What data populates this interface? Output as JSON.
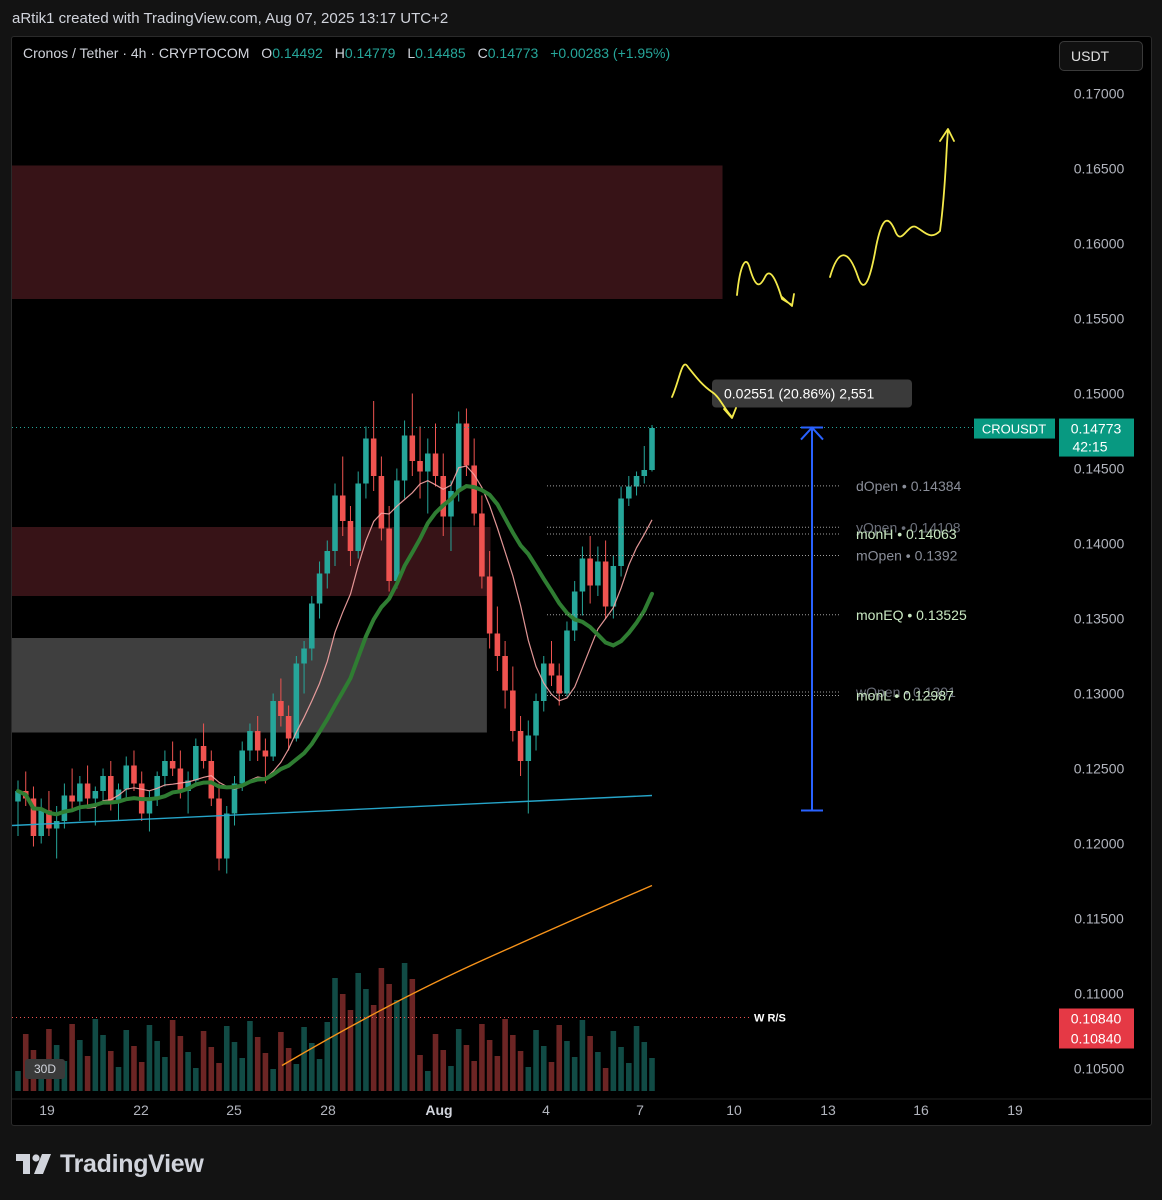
{
  "header": {
    "credit": "aRtik1 created with TradingView.com, Aug 07, 2025 13:17 UTC+2"
  },
  "legend": {
    "symbol": "Cronos / Tether · 4h · CRYPTOCOM",
    "o_label": "O",
    "o_value": "0.14492",
    "h_label": "H",
    "h_value": "0.14779",
    "l_label": "L",
    "l_value": "0.14485",
    "c_label": "C",
    "c_value": "0.14773",
    "change": "+0.00283 (+1.95%)"
  },
  "currency_button": "USDT",
  "brand": {
    "name": "TradingView",
    "logo_icon": "tradingview-logo-icon"
  },
  "colors": {
    "up": "#26a69a",
    "down": "#ef5350",
    "accent": "#089981",
    "resistance_zone": "#3a1418",
    "support_zone": "#4a4a4a",
    "projection": "#f3e94a",
    "measure": "#2962ff"
  },
  "chart_data": {
    "type": "candlestick",
    "timeframe": "4h",
    "x_ticks": [
      "19",
      "22",
      "25",
      "28",
      "Aug",
      "4",
      "7",
      "10",
      "13",
      "16",
      "19"
    ],
    "y_ticks": [
      "0.17000",
      "0.16500",
      "0.16000",
      "0.15500",
      "0.15000",
      "0.14500",
      "0.14000",
      "0.13500",
      "0.13000",
      "0.12500",
      "0.12000",
      "0.11500",
      "0.11000",
      "0.10500"
    ],
    "ylim": [
      0.1035,
      0.1715
    ],
    "last_price": {
      "symbol": "CROUSDT",
      "value": "0.14773",
      "countdown": "42:15"
    },
    "wrs_level": {
      "label": "W R/S",
      "value": 0.1084,
      "badges": [
        "0.10840",
        "0.10840"
      ]
    },
    "levels": [
      {
        "label": "dOpen • 0.14384",
        "value": 0.14384
      },
      {
        "label": "yOpen • 0.14108",
        "value": 0.14108
      },
      {
        "label": "monH • 0.14063",
        "value": 0.14063
      },
      {
        "label": "mOpen • 0.1392",
        "value": 0.1392
      },
      {
        "label": "monEQ • 0.13525",
        "value": 0.13525
      },
      {
        "label": "wOpen • 0.1301",
        "value": 0.1301
      },
      {
        "label": "monL • 0.12987",
        "value": 0.12987
      }
    ],
    "zones": [
      {
        "kind": "resistance",
        "from_day": 18.0,
        "to_day": 27.8,
        "low": 0.1563,
        "high": 0.1652
      },
      {
        "kind": "resistance",
        "from_day": 18.0,
        "to_day": 24.6,
        "low": 0.1365,
        "high": 0.1411
      },
      {
        "kind": "support",
        "from_day": 18.0,
        "to_day": 24.55,
        "low": 0.1274,
        "high": 0.1337
      }
    ],
    "measure": {
      "label": "0.02551 (20.86%) 2,551",
      "from": 0.1222,
      "to": 0.14773,
      "day": 12.85
    },
    "volume_label": "30D",
    "candles": [
      [
        0.1228,
        0.1242,
        0.1205,
        0.1235
      ],
      [
        0.1235,
        0.1248,
        0.1225,
        0.123
      ],
      [
        0.123,
        0.1238,
        0.1198,
        0.1205
      ],
      [
        0.1205,
        0.123,
        0.12,
        0.1222
      ],
      [
        0.1222,
        0.1235,
        0.1205,
        0.121
      ],
      [
        0.121,
        0.1225,
        0.119,
        0.1215
      ],
      [
        0.1215,
        0.124,
        0.121,
        0.1232
      ],
      [
        0.1232,
        0.125,
        0.1222,
        0.1228
      ],
      [
        0.1228,
        0.1245,
        0.1215,
        0.124
      ],
      [
        0.124,
        0.1252,
        0.1225,
        0.123
      ],
      [
        0.123,
        0.1238,
        0.1212,
        0.1235
      ],
      [
        0.1235,
        0.125,
        0.1228,
        0.1245
      ],
      [
        0.1245,
        0.1255,
        0.1222,
        0.1228
      ],
      [
        0.1228,
        0.124,
        0.1215,
        0.1236
      ],
      [
        0.1236,
        0.1258,
        0.123,
        0.1252
      ],
      [
        0.1252,
        0.1262,
        0.1235,
        0.124
      ],
      [
        0.124,
        0.1248,
        0.1215,
        0.122
      ],
      [
        0.122,
        0.1235,
        0.1208,
        0.123
      ],
      [
        0.123,
        0.1248,
        0.1225,
        0.1245
      ],
      [
        0.1245,
        0.1262,
        0.1238,
        0.1255
      ],
      [
        0.1255,
        0.1268,
        0.1245,
        0.125
      ],
      [
        0.125,
        0.1262,
        0.123,
        0.1235
      ],
      [
        0.1235,
        0.1248,
        0.122,
        0.1242
      ],
      [
        0.1242,
        0.127,
        0.1238,
        0.1265
      ],
      [
        0.1265,
        0.128,
        0.125,
        0.1255
      ],
      [
        0.1255,
        0.1262,
        0.1225,
        0.123
      ],
      [
        0.123,
        0.124,
        0.1182,
        0.119
      ],
      [
        0.119,
        0.1225,
        0.118,
        0.122
      ],
      [
        0.122,
        0.1245,
        0.1212,
        0.124
      ],
      [
        0.124,
        0.1268,
        0.1235,
        0.1262
      ],
      [
        0.1262,
        0.128,
        0.1255,
        0.1275
      ],
      [
        0.1275,
        0.1285,
        0.1255,
        0.1262
      ],
      [
        0.1262,
        0.127,
        0.124,
        0.1258
      ],
      [
        0.1258,
        0.13,
        0.1255,
        0.1295
      ],
      [
        0.1295,
        0.131,
        0.1278,
        0.1285
      ],
      [
        0.1285,
        0.1292,
        0.1262,
        0.127
      ],
      [
        0.127,
        0.1325,
        0.1268,
        0.132
      ],
      [
        0.132,
        0.1335,
        0.13,
        0.133
      ],
      [
        0.133,
        0.1365,
        0.1322,
        0.136
      ],
      [
        0.136,
        0.1388,
        0.135,
        0.138
      ],
      [
        0.138,
        0.1402,
        0.137,
        0.1395
      ],
      [
        0.1395,
        0.144,
        0.1385,
        0.1432
      ],
      [
        0.1432,
        0.1458,
        0.1405,
        0.1415
      ],
      [
        0.1415,
        0.1425,
        0.1385,
        0.1395
      ],
      [
        0.1395,
        0.1448,
        0.139,
        0.144
      ],
      [
        0.144,
        0.1478,
        0.143,
        0.147
      ],
      [
        0.147,
        0.1495,
        0.1435,
        0.1445
      ],
      [
        0.1445,
        0.1458,
        0.1402,
        0.141
      ],
      [
        0.141,
        0.1425,
        0.1368,
        0.1375
      ],
      [
        0.1375,
        0.145,
        0.137,
        0.1442
      ],
      [
        0.1442,
        0.1482,
        0.143,
        0.1472
      ],
      [
        0.1472,
        0.15,
        0.1445,
        0.1455
      ],
      [
        0.1455,
        0.1478,
        0.143,
        0.1448
      ],
      [
        0.1448,
        0.147,
        0.142,
        0.146
      ],
      [
        0.146,
        0.148,
        0.1438,
        0.1445
      ],
      [
        0.1445,
        0.146,
        0.1405,
        0.1418
      ],
      [
        0.1418,
        0.1442,
        0.1395,
        0.1435
      ],
      [
        0.1435,
        0.1488,
        0.1428,
        0.148
      ],
      [
        0.148,
        0.149,
        0.1445,
        0.1452
      ],
      [
        0.1452,
        0.147,
        0.1412,
        0.142
      ],
      [
        0.142,
        0.1432,
        0.137,
        0.1378
      ],
      [
        0.1378,
        0.1395,
        0.133,
        0.134
      ],
      [
        0.134,
        0.1358,
        0.1315,
        0.1325
      ],
      [
        0.1325,
        0.1335,
        0.129,
        0.1302
      ],
      [
        0.1302,
        0.1318,
        0.1268,
        0.1275
      ],
      [
        0.1275,
        0.1285,
        0.1245,
        0.1255
      ],
      [
        0.1255,
        0.1282,
        0.122,
        0.1272
      ],
      [
        0.1272,
        0.13,
        0.1262,
        0.1295
      ],
      [
        0.1295,
        0.1325,
        0.1288,
        0.132
      ],
      [
        0.132,
        0.1335,
        0.1305,
        0.1312
      ],
      [
        0.1312,
        0.132,
        0.1292,
        0.13
      ],
      [
        0.13,
        0.1348,
        0.1298,
        0.1342
      ],
      [
        0.1342,
        0.1375,
        0.1335,
        0.1368
      ],
      [
        0.1368,
        0.1398,
        0.1352,
        0.139
      ],
      [
        0.139,
        0.1405,
        0.136,
        0.1372
      ],
      [
        0.1372,
        0.1398,
        0.1365,
        0.1388
      ],
      [
        0.1388,
        0.1402,
        0.135,
        0.1358
      ],
      [
        0.1358,
        0.1392,
        0.135,
        0.1385
      ],
      [
        0.1385,
        0.1438,
        0.1378,
        0.143
      ],
      [
        0.143,
        0.1445,
        0.1425,
        0.1438
      ],
      [
        0.1438,
        0.1448,
        0.1432,
        0.1445
      ],
      [
        0.1445,
        0.1465,
        0.144,
        0.1449
      ],
      [
        0.1449,
        0.1479,
        0.1448,
        0.1477
      ]
    ],
    "annotations": [
      {
        "type": "projection-path",
        "color": "#f3e94a"
      }
    ]
  }
}
